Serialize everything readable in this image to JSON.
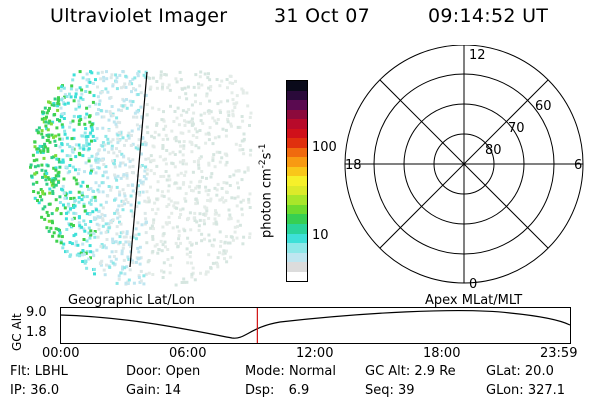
{
  "header": {
    "instrument": "Ultraviolet Imager",
    "date": "31 Oct 07",
    "time": "09:14:52 UT"
  },
  "colorbar": {
    "label": "photon cm",
    "label_exp1": "-2",
    "label_s": "s",
    "label_exp2": "-1",
    "ticks": [
      "100",
      "10"
    ],
    "colors": [
      "#ffffff",
      "#dcdcdc",
      "#bfe6f0",
      "#8ee8e8",
      "#3ee0d8",
      "#2ad49a",
      "#37cf52",
      "#6edb2e",
      "#a8e62a",
      "#dcea2a",
      "#f6f02a",
      "#f9c71a",
      "#f89a12",
      "#f06a0e",
      "#e0300e",
      "#d0101a",
      "#b80a2a",
      "#8c0a3c",
      "#5a0a50",
      "#2a0a3a",
      "#0a0a1a"
    ]
  },
  "polar": {
    "mlt_labels": {
      "top": "12",
      "bottom": "0",
      "left": "18",
      "right": "6"
    },
    "lat_labels": [
      "60",
      "70",
      "80"
    ]
  },
  "strip": {
    "ylabel": "GC Alt",
    "ymax": "9.0",
    "ymin": "1.8",
    "left_label": "Geographic Lat/Lon",
    "right_label": "Apex  MLat/MLT",
    "x_ticks": [
      "00:00",
      "06:00",
      "12:00",
      "18:00",
      "23:59"
    ],
    "current_time_fraction": 0.386
  },
  "meta": {
    "row1": [
      {
        "k": "Flt:",
        "v": "LBHL"
      },
      {
        "k": "Door:",
        "v": "Open"
      },
      {
        "k": "Mode:",
        "v": "Normal"
      },
      {
        "k": "GC Alt:",
        "v": "2.9 Re"
      },
      {
        "k": "GLat:",
        "v": "20.0"
      }
    ],
    "row2": [
      {
        "k": "IP:",
        "v": "36.0"
      },
      {
        "k": "Gain:",
        "v": "14"
      },
      {
        "k": "Dsp:",
        "v": "6.9"
      },
      {
        "k": "Seq:",
        "v": "39"
      },
      {
        "k": "GLon:",
        "v": "327.1"
      }
    ]
  }
}
